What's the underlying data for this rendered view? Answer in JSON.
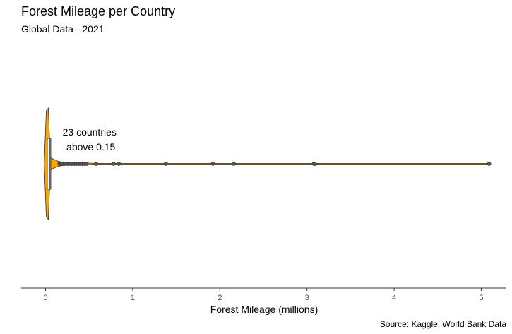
{
  "chart_data": {
    "type": "violin",
    "title": "Forest Mileage per Country",
    "subtitle": "Global Data - 2021",
    "xlabel": "Forest Mileage (millions)",
    "ylabel": "",
    "xlim": [
      -0.28,
      5.28
    ],
    "x_ticks": [
      0,
      1,
      2,
      3,
      4,
      5
    ],
    "x_tick_labels": [
      "0",
      "1",
      "2",
      "3",
      "4",
      "5"
    ],
    "grid": false,
    "caption": "Source: Kaggle, World Bank Data",
    "annotation": {
      "lines": [
        "23 countries",
        "above 0.15"
      ],
      "x": 0.52
    },
    "box": {
      "q1": 0.02,
      "median": 0.05,
      "q3": 0.06
    },
    "points": [
      0.16,
      0.18,
      0.2,
      0.22,
      0.25,
      0.27,
      0.3,
      0.33,
      0.35,
      0.38,
      0.4,
      0.42,
      0.44,
      0.47,
      0.58,
      0.78,
      0.84,
      1.38,
      1.92,
      2.16,
      3.08,
      3.09,
      5.09
    ],
    "colors": {
      "fill": "#FFA500",
      "outline": "#333333",
      "point": "#555555"
    }
  }
}
